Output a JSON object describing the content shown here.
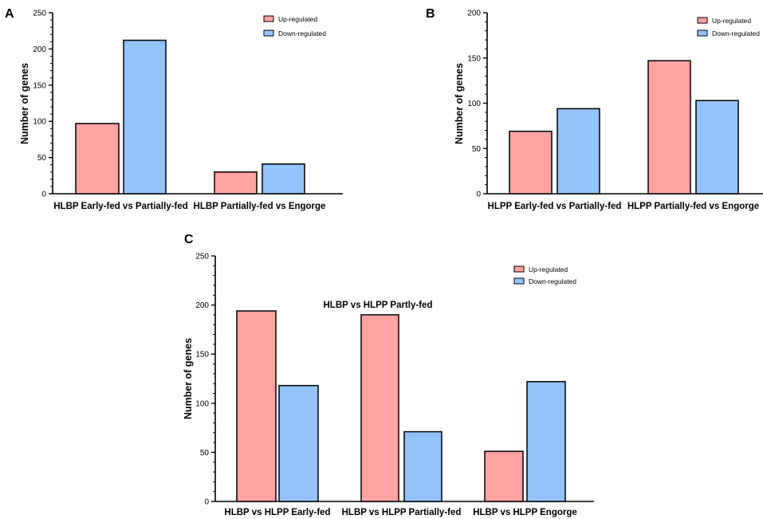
{
  "colors": {
    "up": "#ffa3a3",
    "down": "#94c2fa",
    "stroke": "#000000"
  },
  "chart_data": [
    {
      "panel_label": "A",
      "type": "bar",
      "ylabel": "Number of genes",
      "ylim": [
        0,
        250
      ],
      "yticks": [
        0,
        50,
        100,
        150,
        200,
        250
      ],
      "categories": [
        "HLBP Early-fed vs Partially-fed",
        "HLBP Partially-fed vs Engorge"
      ],
      "series": [
        {
          "name": "Up-regulated",
          "values": [
            97,
            30
          ]
        },
        {
          "name": "Down-regulated",
          "values": [
            212,
            41
          ]
        }
      ],
      "legend": "top-right"
    },
    {
      "panel_label": "B",
      "type": "bar",
      "ylabel": "Number of genes",
      "ylim": [
        0,
        200
      ],
      "yticks": [
        0,
        50,
        100,
        150,
        200
      ],
      "categories": [
        "HLPP Early-fed vs Partially-fed",
        "HLPP Partially-fed vs Engorge"
      ],
      "series": [
        {
          "name": "Up-regulated",
          "values": [
            69,
            147
          ]
        },
        {
          "name": "Down-regulated",
          "values": [
            94,
            103
          ]
        }
      ],
      "legend": "top-right"
    },
    {
      "panel_label": "C",
      "type": "bar",
      "ylabel": "Number of genes",
      "annotation": "HLBP vs HLPP Partly-fed",
      "ylim": [
        0,
        250
      ],
      "yticks": [
        0,
        50,
        100,
        150,
        200,
        250
      ],
      "categories": [
        "HLBP vs HLPP Early-fed",
        "HLBP vs HLPP Partially-fed",
        "HLBP vs HLPP Engorge"
      ],
      "series": [
        {
          "name": "Up-regulated",
          "values": [
            194,
            190,
            51
          ]
        },
        {
          "name": "Down-regulated",
          "values": [
            118,
            71,
            122
          ]
        }
      ],
      "legend": "top-right"
    }
  ]
}
